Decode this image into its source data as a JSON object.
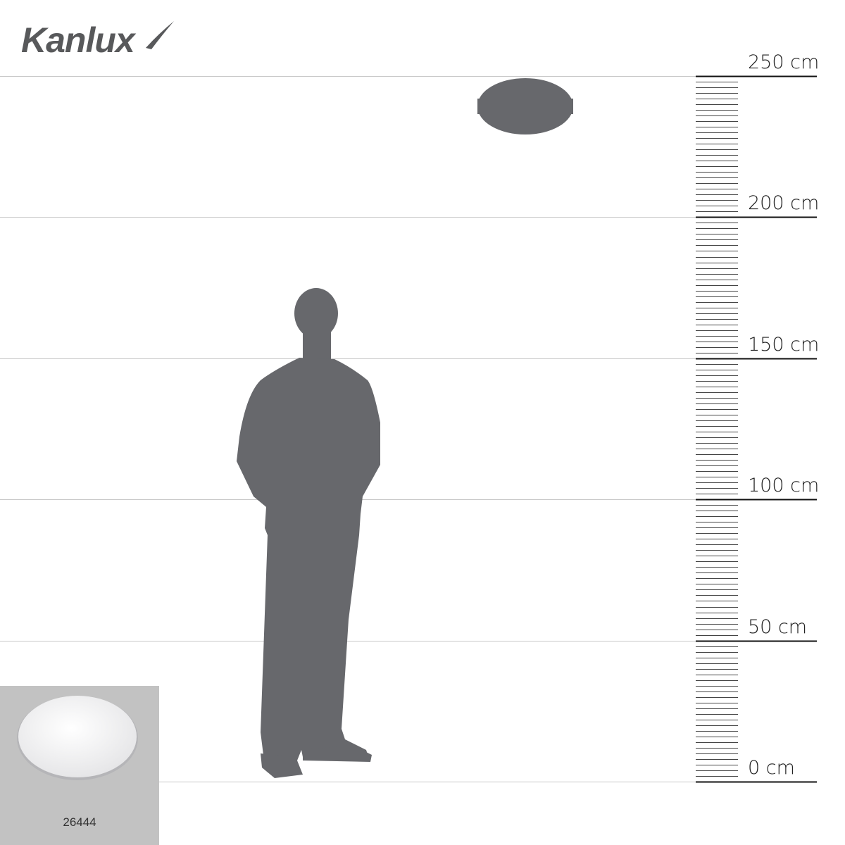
{
  "brand": {
    "logo_text": "Kanlux",
    "logo_color": "#58595b"
  },
  "scale": {
    "unit": "cm",
    "range": [
      0,
      250
    ],
    "major_labels": [
      "0 cm",
      "50 cm",
      "100 cm",
      "150 cm",
      "200 cm",
      "250 cm"
    ],
    "major_values": [
      0,
      50,
      100,
      150,
      200,
      250
    ],
    "minor_tick_step": 2
  },
  "product": {
    "code": "26444",
    "mount_height_cm": 240,
    "silhouette_color": "#67686c"
  },
  "colors": {
    "figure": "#67686c",
    "gridline": "#c8c8c8",
    "thumbnail_bg": "#c2c2c2"
  }
}
